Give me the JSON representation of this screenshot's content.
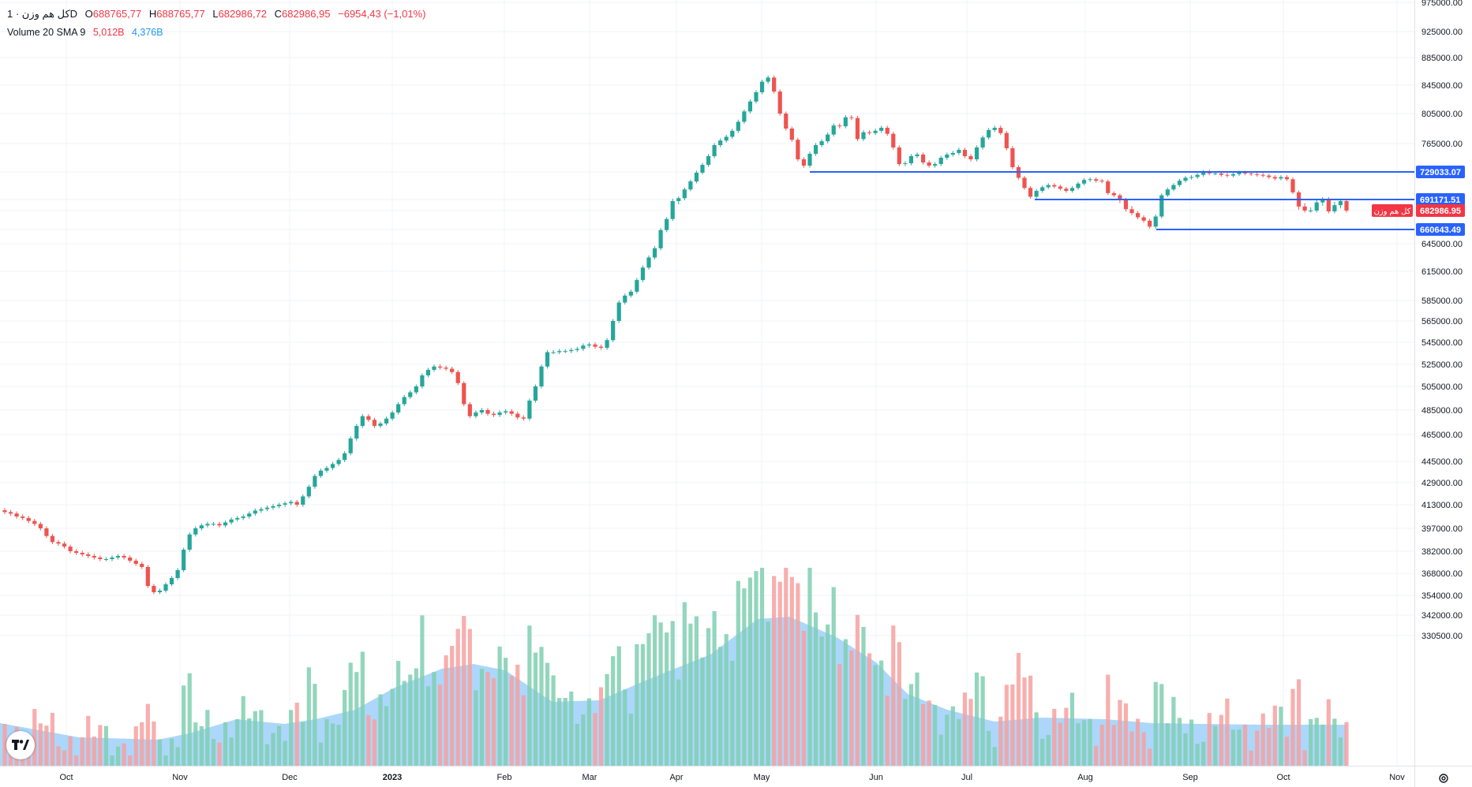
{
  "header": {
    "symbol": "کل هم وزن · 1D",
    "ohlc": [
      {
        "label": "O",
        "value": "688765,77"
      },
      {
        "label": "H",
        "value": "688765,77"
      },
      {
        "label": "L",
        "value": "682986,72"
      },
      {
        "label": "C",
        "value": "682986,95"
      }
    ],
    "change": "−6954,43 (−1,01%)",
    "volume_label": "Volume 20 SMA 9",
    "volume_value": "5,012B",
    "sma_value": "4,376B"
  },
  "price_axis_labels": [
    "975000.00",
    "925000.00",
    "885000.00",
    "845000.00",
    "805000.00",
    "765000.00",
    "645000.00",
    "615000.00",
    "585000.00",
    "565000.00",
    "545000.00",
    "525000.00",
    "505000.00",
    "485000.00",
    "465000.00",
    "445000.00",
    "429000.00",
    "413000.00",
    "397000.00",
    "382000.00",
    "368000.00",
    "354000.00",
    "342000.00",
    "330500.00"
  ],
  "horizontal_levels": [
    {
      "label": "729033.07",
      "color": "#2962ff"
    },
    {
      "label": "691171.51",
      "color": "#2962ff"
    },
    {
      "label": "660643.49",
      "color": "#2962ff"
    }
  ],
  "last_price": {
    "label": "682986.95",
    "name": "کل هم وزن",
    "color": "#f23645"
  },
  "time_axis_labels": [
    "Oct",
    "Nov",
    "Dec",
    "2023",
    "Feb",
    "Mar",
    "Apr",
    "May",
    "Jun",
    "Jul",
    "Aug",
    "Sep",
    "Oct",
    "Nov"
  ],
  "colors": {
    "up": "#26a69a",
    "down": "#ef5350",
    "volume_area": "#90caf9",
    "level_line": "#2962ff"
  },
  "chart_data": {
    "type": "candlestick",
    "title": "کل هم وزن · 1D",
    "price_range": [
      330500,
      975000
    ],
    "series": [
      {
        "name": "price_close",
        "values": [
          408000,
          407000,
          405000,
          404000,
          402000,
          400000,
          397000,
          392000,
          388000,
          387000,
          385000,
          382000,
          381000,
          380000,
          379000,
          378000,
          377000,
          377000,
          378000,
          379000,
          378000,
          376000,
          374000,
          372000,
          360000,
          356000,
          357000,
          361000,
          365000,
          370000,
          383000,
          393000,
          397000,
          399000,
          400000,
          400000,
          399000,
          401000,
          403000,
          404000,
          405000,
          407000,
          409000,
          410000,
          411000,
          412000,
          413000,
          414000,
          415000,
          413000,
          419000,
          426000,
          434000,
          438000,
          440000,
          443000,
          446000,
          451000,
          462000,
          472000,
          480000,
          477000,
          472000,
          474000,
          478000,
          483000,
          490000,
          496000,
          500000,
          505000,
          515000,
          520000,
          523000,
          522000,
          521000,
          518000,
          508000,
          490000,
          480000,
          483000,
          485000,
          482000,
          481000,
          483000,
          484000,
          482000,
          479000,
          478000,
          493000,
          505000,
          523000,
          536000,
          536000,
          537000,
          537000,
          538000,
          539000,
          542000,
          543000,
          541000,
          540000,
          547000,
          565000,
          583000,
          590000,
          594000,
          606000,
          619000,
          630000,
          640000,
          660000,
          673000,
          690000,
          693000,
          705000,
          716000,
          728000,
          738000,
          749000,
          763000,
          769000,
          774000,
          782000,
          794000,
          808000,
          822000,
          835000,
          850000,
          856000,
          836000,
          805000,
          785000,
          770000,
          745000,
          737000,
          752000,
          763000,
          768000,
          777000,
          789000,
          788000,
          800000,
          799000,
          771000,
          780000,
          779000,
          782000,
          786000,
          778000,
          760000,
          739000,
          740000,
          749000,
          751000,
          741000,
          737000,
          739000,
          747000,
          751000,
          753000,
          757000,
          749000,
          745000,
          760000,
          773000,
          783000,
          786000,
          779000,
          759000,
          735000,
          721000,
          707000,
          695000,
          703000,
          708000,
          711000,
          709000,
          706000,
          703000,
          707000,
          713000,
          718000,
          719000,
          717000,
          716000,
          700000,
          697000,
          691000,
          684000,
          680000,
          675000,
          671000,
          664000,
          676000,
          697000,
          705000,
          711000,
          717000,
          721000,
          722000,
          725000,
          729000,
          727000,
          727000,
          725000,
          724000,
          726000,
          728000,
          727000,
          726000,
          725000,
          724000,
          722000,
          720000,
          722000,
          719000,
          701000,
          686000,
          683000,
          683000,
          689000,
          692000,
          682000,
          687000,
          690000,
          683000
        ]
      },
      {
        "name": "Volume 20",
        "values": []
      },
      {
        "name": "SMA 9",
        "values": []
      }
    ],
    "levels": [
      729033.07,
      691171.51,
      660643.49
    ],
    "last_close": 682986.95
  }
}
